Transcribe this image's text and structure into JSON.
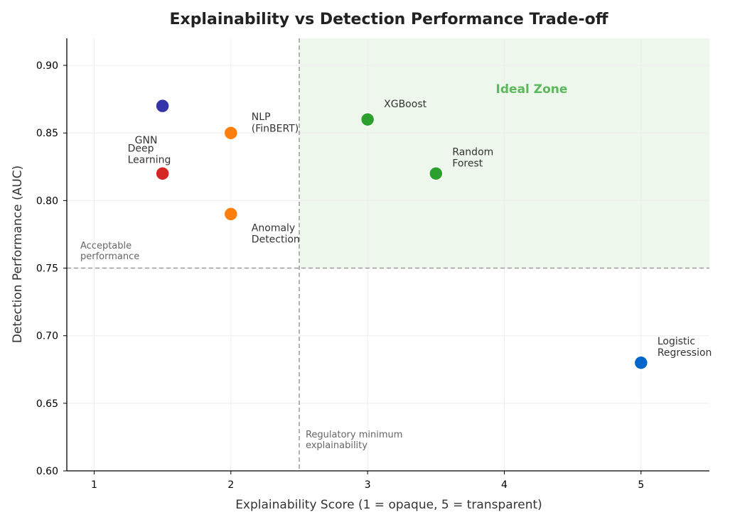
{
  "chart_data": {
    "type": "scatter",
    "title": "Explainability vs Detection Performance Trade-off",
    "xlabel": "Explainability Score (1 = opaque, 5 = transparent)",
    "ylabel": "Detection Performance (AUC)",
    "xlim": [
      0.8,
      5.5
    ],
    "ylim": [
      0.6,
      0.92
    ],
    "xticks": [
      "1",
      "2",
      "3",
      "4",
      "5"
    ],
    "yticks": [
      "0.60",
      "0.65",
      "0.70",
      "0.75",
      "0.80",
      "0.85",
      "0.90"
    ],
    "grid": true,
    "points": [
      {
        "label": [
          "GNN"
        ],
        "x": 1.5,
        "y": 0.87,
        "color": "#3333aa"
      },
      {
        "label": [
          "NLP",
          "(FinBERT)"
        ],
        "x": 2,
        "y": 0.85,
        "color": "#ff7f0e"
      },
      {
        "label": [
          "Deep",
          "Learning"
        ],
        "x": 1.5,
        "y": 0.82,
        "color": "#d62728"
      },
      {
        "label": [
          "Anomaly",
          "Detection"
        ],
        "x": 2,
        "y": 0.79,
        "color": "#ff7f0e"
      },
      {
        "label": [
          "XGBoost"
        ],
        "x": 3,
        "y": 0.86,
        "color": "#2ca02c"
      },
      {
        "label": [
          "Random",
          "Forest"
        ],
        "x": 3.5,
        "y": 0.82,
        "color": "#2ca02c"
      },
      {
        "label": [
          "Logistic",
          "Regression"
        ],
        "x": 5,
        "y": 0.68,
        "color": "#0066cc"
      }
    ],
    "reference_lines": {
      "x": 2.5,
      "x_label": [
        "Regulatory minimum",
        "explainability"
      ],
      "y": 0.75,
      "y_label": [
        "Acceptable",
        "performance"
      ]
    },
    "zone": {
      "label": "Ideal Zone",
      "x_from": 2.5,
      "y_from": 0.75,
      "fill": "#eef7ec",
      "label_color": "#5cb85c"
    }
  }
}
